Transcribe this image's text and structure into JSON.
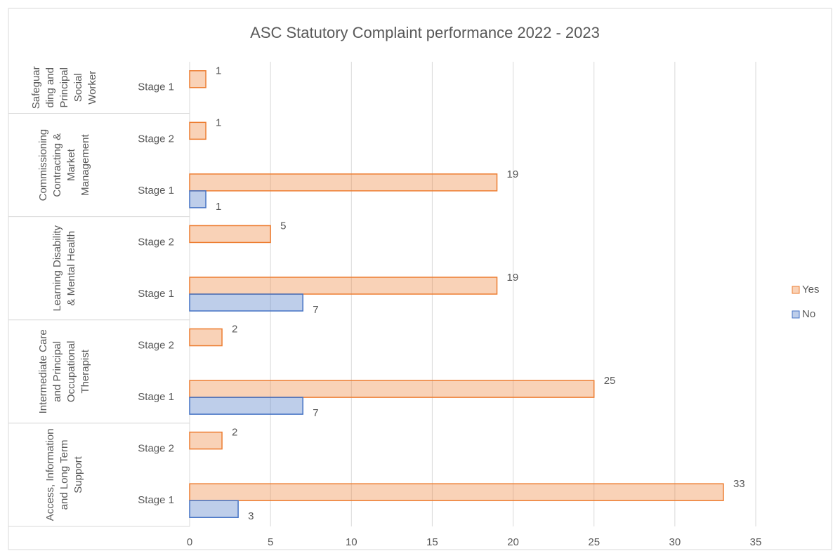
{
  "chart_data": {
    "type": "bar",
    "orientation": "horizontal",
    "title": "ASC Statutory Complaint performance 2022 - 2023",
    "groups": [
      {
        "label": [
          "Safeguar",
          "ding and",
          "Principal",
          "Social",
          "Worker"
        ],
        "stages": [
          "Stage 1"
        ]
      },
      {
        "label": [
          "Commissioning",
          "Contracting &",
          "Market",
          "Management"
        ],
        "stages": [
          "Stage 2",
          "Stage 1"
        ]
      },
      {
        "label": [
          "Learning Disability",
          "& Mental Health"
        ],
        "stages": [
          "Stage 2",
          "Stage 1"
        ]
      },
      {
        "label": [
          "Intermediate Care",
          "and Principal",
          "Occupational",
          "Therapist"
        ],
        "stages": [
          "Stage 2",
          "Stage 1"
        ]
      },
      {
        "label": [
          "Access, Information",
          "and Long Term",
          "Support"
        ],
        "stages": [
          "Stage 2",
          "Stage 1"
        ]
      }
    ],
    "series": [
      {
        "name": "Yes",
        "color": "#ed7d31",
        "values": [
          1,
          1,
          19,
          5,
          19,
          2,
          25,
          2,
          33
        ]
      },
      {
        "name": "No",
        "color": "#4472c4",
        "values": [
          null,
          null,
          1,
          null,
          7,
          null,
          7,
          null,
          3
        ]
      }
    ],
    "xlim": [
      0,
      35
    ],
    "xticks": [
      0,
      5,
      10,
      15,
      20,
      25,
      30,
      35
    ],
    "grid": true,
    "legend": "right"
  }
}
